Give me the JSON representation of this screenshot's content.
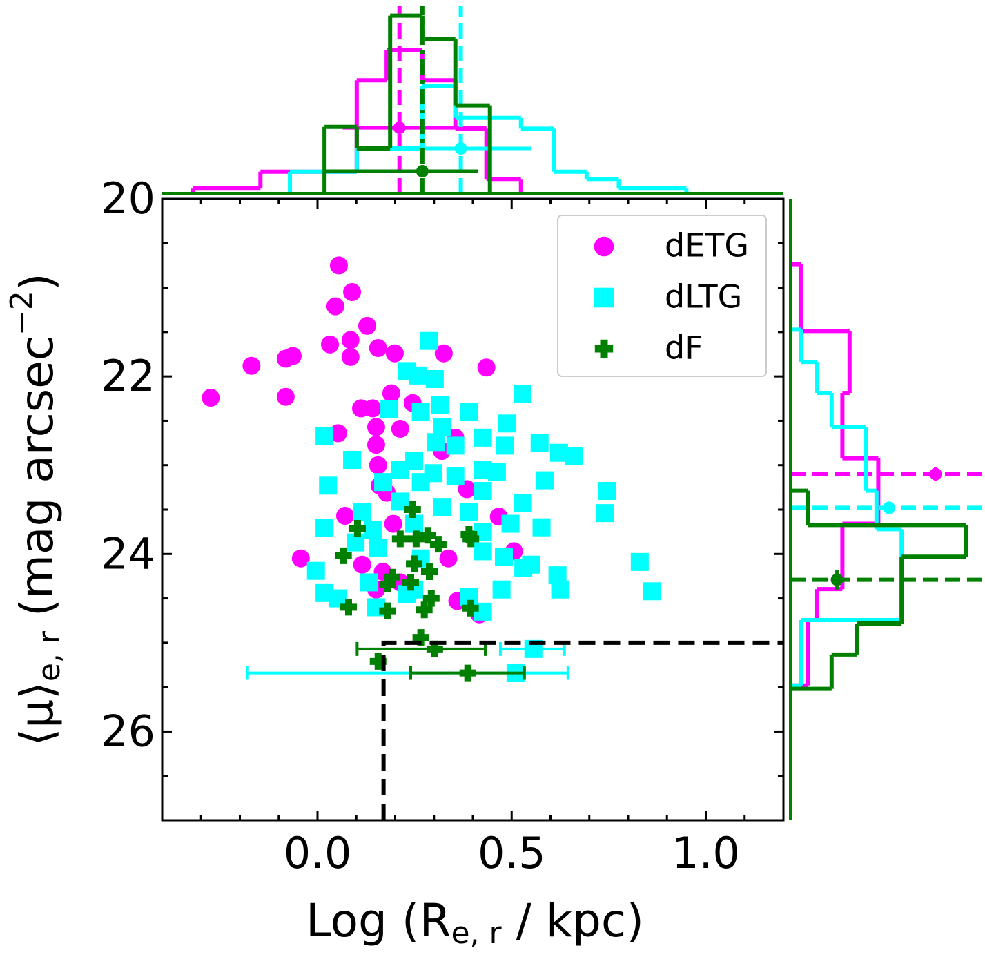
{
  "chart_data": {
    "type": "scatter",
    "xlabel": {
      "text": "Log (R",
      "sub": "e, r",
      "after": " / kpc)"
    },
    "ylabel": {
      "text": "⟨μ⟩",
      "sub": "e, r",
      "after": " (mag arcsec",
      "sup": "−2",
      "end": ")"
    },
    "xlim": [
      -0.4,
      1.2
    ],
    "ylim": [
      20,
      27
    ],
    "yinvert": true,
    "xticks": [
      {
        "value": 0,
        "label": "0.0"
      },
      0.5,
      {
        "value": 1,
        "label": "1.0"
      }
    ],
    "xminor": [
      -0.3,
      -0.2,
      -0.1,
      0.1,
      0.2,
      0.3,
      0.4,
      0.6,
      0.7,
      0.8,
      0.9,
      1.1
    ],
    "yticks": [
      20,
      22,
      24,
      26
    ],
    "yminor": [
      20.5,
      21,
      21.5,
      22.5,
      23,
      23.5,
      24.5,
      25,
      25.5,
      26.5
    ],
    "legend": "upper right",
    "selection_box": {
      "x": 0.17,
      "y": 25
    },
    "hist_lim": [
      0,
      1
    ],
    "series": [
      {
        "name": "dETG",
        "color": "#ff00ff",
        "marker": "circle",
        "x": [
          -0.275,
          -0.17,
          -0.082,
          -0.064,
          -0.082,
          0.055,
          0.046,
          0.089,
          0.128,
          0.085,
          0.032,
          0.085,
          0.156,
          0.199,
          0.325,
          0.435,
          0.19,
          0.245,
          0.112,
          0.142,
          0.213,
          0.053,
          0.151,
          0.151,
          0.156,
          0.16,
          0.178,
          0.355,
          0.32,
          0.385,
          0.071,
          0.195,
          0.467,
          -0.043,
          0.115,
          0.151,
          0.213,
          0.337,
          0.36,
          0.417,
          0.506,
          0.168
        ],
        "y": [
          22.24,
          21.88,
          21.8,
          21.77,
          22.23,
          20.75,
          21.21,
          21.05,
          21.43,
          21.59,
          21.64,
          21.78,
          21.68,
          21.74,
          21.74,
          21.9,
          22.19,
          22.3,
          22.36,
          22.36,
          22.59,
          22.64,
          22.57,
          22.77,
          23.0,
          23.23,
          23.31,
          22.69,
          22.84,
          23.27,
          23.57,
          23.66,
          23.58,
          24.05,
          24.12,
          24.4,
          24.32,
          24.05,
          24.53,
          24.68,
          23.97,
          24.2
        ],
        "errorbars": [],
        "top_hist": {
          "edges": [
            -0.32,
            -0.147,
            0.101,
            0.178,
            0.27,
            0.355,
            0.435,
            0.524
          ],
          "counts": [
            0.03,
            0.12,
            0.63,
            0.8,
            0.63,
            0.36,
            0.08
          ],
          "median": 0.211,
          "linestyle": "dashed",
          "err": {
            "x": 0.211,
            "h": 0.365,
            "xerr": [
              0.146,
              0.224
            ]
          }
        },
        "right_hist": {
          "edges": [
            20.736,
            21.488,
            22.186,
            22.922,
            23.659,
            24.395,
            24.744,
            25.481
          ],
          "counts": [
            0.06,
            0.33,
            0.29,
            0.49,
            0.29,
            0.15,
            0.1
          ],
          "median": 23.1,
          "err": {
            "y": 23.1,
            "w": 0.81,
            "yerr": [
              0.08,
              0.08
            ]
          }
        }
      },
      {
        "name": "dLTG",
        "color": "#00ffff",
        "marker": "square",
        "x": [
          0.288,
          0.231,
          0.259,
          0.302,
          0.528,
          0.185,
          0.266,
          0.316,
          0.39,
          0.487,
          0.32,
          0.018,
          0.089,
          0.249,
          0.305,
          0.355,
          0.426,
          0.483,
          0.572,
          0.622,
          0.661,
          0.213,
          0.298,
          0.355,
          0.426,
          0.462,
          0.586,
          0.027,
          0.169,
          0.266,
          0.426,
          0.746,
          0.74,
          0.115,
          0.213,
          0.32,
          0.39,
          0.529,
          0.018,
          0.142,
          0.249,
          0.426,
          0.497,
          0.577,
          0.098,
          0.156,
          0.266,
          0.426,
          0.48,
          0.55,
          0.83,
          -0.004,
          0.133,
          0.249,
          0.474,
          0.618,
          0.625,
          0.861,
          0.018,
          0.053,
          0.151,
          0.231,
          0.39,
          0.426,
          0.53
        ],
        "y": [
          21.6,
          21.94,
          21.99,
          22.03,
          22.2,
          22.37,
          22.4,
          22.32,
          22.4,
          22.53,
          22.57,
          22.67,
          22.94,
          22.95,
          22.74,
          22.78,
          22.69,
          22.78,
          22.75,
          22.86,
          22.9,
          23.05,
          23.09,
          23.12,
          23.05,
          23.08,
          23.17,
          23.23,
          23.19,
          23.19,
          23.29,
          23.29,
          23.54,
          23.53,
          23.41,
          23.47,
          23.53,
          23.43,
          23.71,
          23.73,
          23.66,
          23.75,
          23.66,
          23.7,
          23.87,
          23.93,
          24.05,
          23.97,
          24.03,
          24.12,
          24.09,
          24.19,
          24.32,
          24.4,
          24.4,
          24.24,
          24.4,
          24.42,
          24.44,
          24.5,
          24.6,
          24.45,
          24.48,
          24.65,
          24.16
        ],
        "errorbars": [
          {
            "x": 0.556,
            "y": 25.07,
            "xerr": [
              0.085,
              0.08
            ]
          },
          {
            "x": 0.51,
            "y": 25.34,
            "xerr": [
              0.69,
              0.135
            ]
          }
        ],
        "top_hist": {
          "edges": [
            -0.071,
            0.101,
            0.27,
            0.355,
            0.524,
            0.609,
            0.693,
            0.776,
            0.95
          ],
          "counts": [
            0.12,
            0.25,
            0.6,
            0.42,
            0.36,
            0.12,
            0.08,
            0.03
          ],
          "median": 0.369,
          "linestyle": "dashed",
          "err": {
            "x": 0.369,
            "h": 0.25,
            "xerr": [
              0.2,
              0.181
            ]
          }
        },
        "right_hist": {
          "edges": [
            21.473,
            21.837,
            22.186,
            22.574,
            23.287,
            23.721,
            24.744,
            25.481
          ],
          "counts": [
            0.06,
            0.15,
            0.23,
            0.42,
            0.48,
            0.62,
            0.06
          ],
          "median": 23.48,
          "err": {
            "y": 23.48,
            "w": 0.55,
            "yerr": [
              0.06,
              0.06
            ]
          }
        }
      },
      {
        "name": "dF",
        "color": "#008000",
        "marker": "plus",
        "x": [
          0.245,
          0.103,
          0.213,
          0.254,
          0.284,
          0.311,
          0.39,
          0.395,
          0.067,
          0.249,
          0.288,
          0.192,
          0.18,
          0.24,
          0.293,
          0.275,
          0.08,
          0.18,
          0.394,
          0.156,
          0.266
        ],
        "y": [
          23.5,
          23.71,
          23.83,
          23.83,
          23.79,
          23.89,
          23.78,
          23.83,
          24.02,
          24.11,
          24.2,
          24.26,
          24.34,
          24.32,
          24.5,
          24.63,
          24.6,
          24.64,
          24.61,
          25.21,
          24.94
        ],
        "errorbars": [
          {
            "x": 0.302,
            "y": 25.07,
            "xerr": [
              0.2,
              0.13
            ]
          },
          {
            "x": 0.387,
            "y": 25.34,
            "xerr": [
              0.147,
              0.146
            ]
          }
        ],
        "top_hist": {
          "edges": [
            0.018,
            0.101,
            0.187,
            0.27,
            0.355,
            0.444
          ],
          "counts": [
            0.37,
            0.25,
            0.99,
            0.86,
            0.49
          ],
          "median": 0.27,
          "linestyle": "dashdot",
          "err": {
            "x": 0.27,
            "h": 0.123,
            "xerr": [
              0.252,
              0.144
            ]
          }
        },
        "right_hist": {
          "edges": [
            23.287,
            23.674,
            24.031,
            24.783,
            25.132,
            25.519
          ],
          "counts": [
            0.1,
            0.98,
            0.62,
            0.37,
            0.23
          ],
          "median": 24.29,
          "err": {
            "y": 24.29,
            "w": 0.26,
            "yerr": [
              0.11,
              0.11
            ]
          }
        }
      }
    ]
  }
}
